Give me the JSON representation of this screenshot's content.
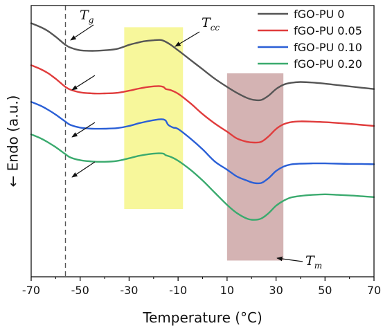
{
  "chart_data": {
    "type": "line",
    "xlabel": "Temperature (°C)",
    "ylabel": "← Endo (a.u.)",
    "xlim": [
      -70,
      70
    ],
    "ylim": [
      0,
      1
    ],
    "x_ticks": [
      "-70",
      "-50",
      "-30",
      "-10",
      "10",
      "30",
      "50",
      "70"
    ],
    "y_ticks": [],
    "grid": false,
    "legend_position": "top-right",
    "series": [
      {
        "name": "fGO-PU 0",
        "color": "#555555",
        "x": [
          -70,
          -66,
          -63,
          -60,
          -58,
          -56,
          -54,
          -50,
          -45,
          -40,
          -35,
          -30,
          -27,
          -24,
          -20,
          -17,
          -15,
          -13,
          -10,
          -5,
          0,
          5,
          10,
          14,
          18,
          21,
          24,
          27,
          30,
          33,
          36,
          40,
          45,
          50,
          55,
          60,
          65,
          70
        ],
        "y": [
          0.935,
          0.92,
          0.905,
          0.885,
          0.87,
          0.855,
          0.845,
          0.835,
          0.833,
          0.835,
          0.84,
          0.855,
          0.862,
          0.868,
          0.872,
          0.873,
          0.866,
          0.855,
          0.835,
          0.8,
          0.765,
          0.73,
          0.7,
          0.678,
          0.66,
          0.652,
          0.652,
          0.668,
          0.692,
          0.708,
          0.715,
          0.718,
          0.716,
          0.712,
          0.707,
          0.702,
          0.697,
          0.692
        ]
      },
      {
        "name": "fGO-PU 0.05",
        "color": "#e03c3c",
        "x": [
          -70,
          -66,
          -63,
          -60,
          -58,
          -56,
          -54,
          -50,
          -45,
          -40,
          -35,
          -30,
          -26,
          -22,
          -18,
          -16,
          -15,
          -13,
          -10,
          -5,
          0,
          5,
          10,
          14,
          18,
          21,
          24,
          27,
          30,
          33,
          36,
          40,
          45,
          50,
          55,
          60,
          65,
          70
        ],
        "y": [
          0.78,
          0.765,
          0.75,
          0.73,
          0.715,
          0.7,
          0.69,
          0.68,
          0.676,
          0.676,
          0.678,
          0.686,
          0.694,
          0.7,
          0.703,
          0.7,
          0.692,
          0.688,
          0.675,
          0.64,
          0.6,
          0.565,
          0.535,
          0.51,
          0.498,
          0.495,
          0.498,
          0.518,
          0.545,
          0.562,
          0.57,
          0.573,
          0.572,
          0.57,
          0.567,
          0.564,
          0.56,
          0.556
        ]
      },
      {
        "name": "fGO-PU 0.10",
        "color": "#2a5fd6",
        "x": [
          -70,
          -66,
          -63,
          -60,
          -58,
          -56,
          -54,
          -50,
          -45,
          -40,
          -35,
          -30,
          -26,
          -22,
          -18,
          -16,
          -15,
          -14,
          -12,
          -10,
          -5,
          0,
          5,
          10,
          14,
          18,
          21,
          24,
          27,
          30,
          33,
          36,
          40,
          45,
          50,
          55,
          60,
          65,
          70
        ],
        "y": [
          0.645,
          0.63,
          0.615,
          0.598,
          0.585,
          0.572,
          0.56,
          0.55,
          0.546,
          0.546,
          0.548,
          0.556,
          0.566,
          0.574,
          0.58,
          0.58,
          0.575,
          0.56,
          0.55,
          0.545,
          0.51,
          0.47,
          0.425,
          0.395,
          0.37,
          0.355,
          0.346,
          0.346,
          0.364,
          0.39,
          0.406,
          0.414,
          0.417,
          0.418,
          0.418,
          0.417,
          0.416,
          0.416,
          0.415
        ]
      },
      {
        "name": "fGO-PU 0.20",
        "color": "#3aaa6e",
        "x": [
          -70,
          -66,
          -63,
          -60,
          -58,
          -56,
          -54,
          -50,
          -45,
          -40,
          -35,
          -30,
          -26,
          -22,
          -18,
          -16,
          -15,
          -13,
          -10,
          -5,
          0,
          5,
          10,
          14,
          18,
          21,
          24,
          27,
          30,
          33,
          36,
          40,
          45,
          50,
          55,
          60,
          65,
          70
        ],
        "y": [
          0.525,
          0.51,
          0.495,
          0.478,
          0.465,
          0.452,
          0.44,
          0.43,
          0.425,
          0.424,
          0.427,
          0.437,
          0.446,
          0.452,
          0.455,
          0.454,
          0.448,
          0.442,
          0.428,
          0.395,
          0.355,
          0.31,
          0.265,
          0.235,
          0.215,
          0.21,
          0.215,
          0.235,
          0.262,
          0.28,
          0.292,
          0.298,
          0.302,
          0.304,
          0.302,
          0.3,
          0.297,
          0.294
        ]
      }
    ],
    "shaded_regions": [
      {
        "name": "cold-crystallization-region",
        "x0": -32,
        "x1": -8,
        "y0": 0.25,
        "y1": 0.92,
        "color": "#f6f68a",
        "opacity": 0.85
      },
      {
        "name": "melting-region",
        "x0": 10,
        "x1": 33,
        "y0": 0.06,
        "y1": 0.75,
        "color": "#c9a0a0",
        "opacity": 0.8
      }
    ],
    "reference_line": {
      "x": -56,
      "style": "dashed",
      "color": "#555555"
    },
    "annotations": [
      {
        "name": "tg-label",
        "main": "T",
        "sub": "g"
      },
      {
        "name": "tcc-label",
        "main": "T",
        "sub": "cc"
      },
      {
        "name": "tm-label",
        "main": "T",
        "sub": "m"
      }
    ]
  }
}
